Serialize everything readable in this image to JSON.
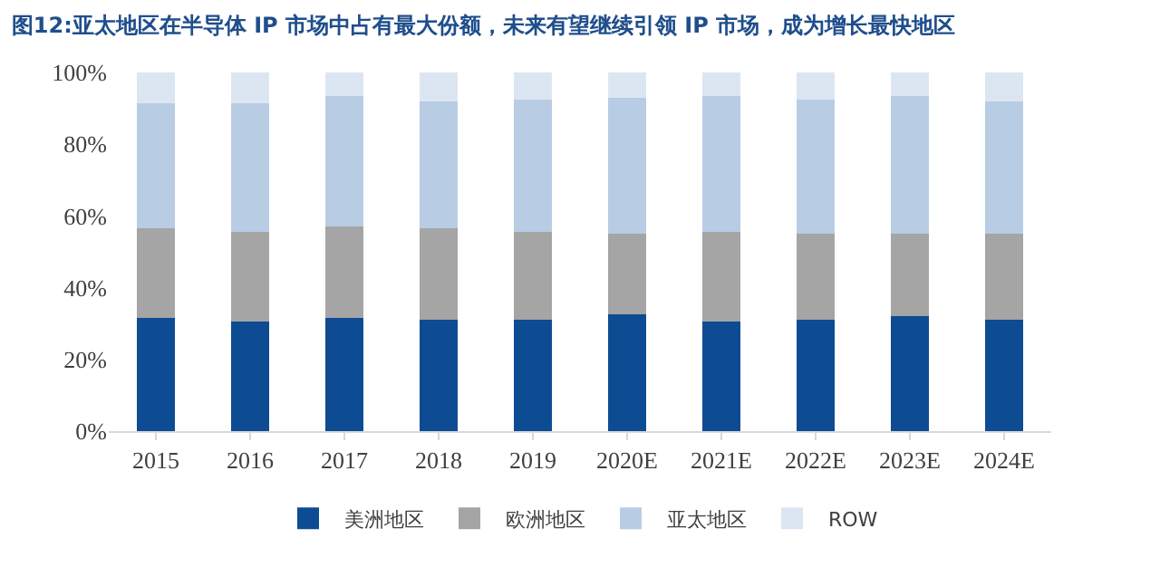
{
  "chart_data": {
    "type": "bar",
    "stacked": true,
    "title": "图12:亚太地区在半导体 IP 市场中占有最大份额，未来有望继续引领 IP 市场，成为增长最快地区",
    "categories": [
      "2015",
      "2016",
      "2017",
      "2018",
      "2019",
      "2020E",
      "2021E",
      "2022E",
      "2023E",
      "2024E"
    ],
    "series": [
      {
        "name": "美洲地区",
        "color": "#0d4c92",
        "values": [
          31.5,
          30.5,
          31.5,
          31,
          31,
          32.5,
          30.5,
          31,
          32,
          31
        ]
      },
      {
        "name": "欧洲地区",
        "color": "#a5a5a5",
        "values": [
          25,
          25,
          25.5,
          25.5,
          24.5,
          22.5,
          25,
          24,
          23,
          24
        ]
      },
      {
        "name": "亚太地区",
        "color": "#b8cce4",
        "values": [
          35,
          36,
          36.5,
          35.5,
          37,
          38,
          38,
          37.5,
          38.5,
          37
        ]
      },
      {
        "name": "ROW",
        "color": "#dce6f2",
        "values": [
          8.5,
          8.5,
          6.5,
          8,
          7.5,
          7,
          6.5,
          7.5,
          6.5,
          8
        ]
      }
    ],
    "ylim": [
      0,
      100
    ],
    "yticks": [
      {
        "value": 0,
        "label": "0%"
      },
      {
        "value": 20,
        "label": "20%"
      },
      {
        "value": 40,
        "label": "40%"
      },
      {
        "value": 60,
        "label": "60%"
      },
      {
        "value": 80,
        "label": "80%"
      },
      {
        "value": 100,
        "label": "100%"
      }
    ],
    "grid": false,
    "legend": "bottom"
  }
}
